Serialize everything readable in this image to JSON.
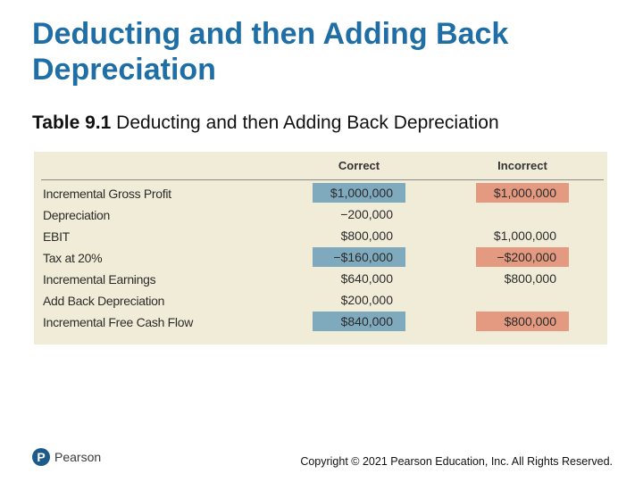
{
  "slide": {
    "title": "Deducting and then Adding Back Depreciation",
    "subtitle_number": "Table 9.1",
    "subtitle_text": "Deducting and then Adding Back Depreciation"
  },
  "table": {
    "columns": [
      "Correct",
      "Incorrect"
    ],
    "rows": [
      {
        "label": "Incremental Gross Profit",
        "correct": "$1,000,000",
        "incorrect": "$1,000,000"
      },
      {
        "label": "Depreciation",
        "correct": "−200,000",
        "incorrect": ""
      },
      {
        "label": "EBIT",
        "correct": "$800,000",
        "incorrect": "$1,000,000"
      },
      {
        "label": "Tax at 20%",
        "correct": "−$160,000",
        "incorrect": "−$200,000"
      },
      {
        "label": "Incremental Earnings",
        "correct": "$640,000",
        "incorrect": "$800,000"
      },
      {
        "label": "Add Back Depreciation",
        "correct": "$200,000",
        "incorrect": ""
      },
      {
        "label": "Incremental Free Cash Flow",
        "correct": "$840,000",
        "incorrect": "$800,000"
      }
    ],
    "colors": {
      "correct_highlight": "#7faabd",
      "incorrect_highlight": "#e49a80",
      "panel_background": "#f1ecd8"
    }
  },
  "footer": {
    "logo_icon": "pearson-logo-icon",
    "logo_mark": "P",
    "logo_text": "Pearson",
    "copyright": "Copyright © 2021 Pearson Education, Inc. All Rights Reserved."
  }
}
